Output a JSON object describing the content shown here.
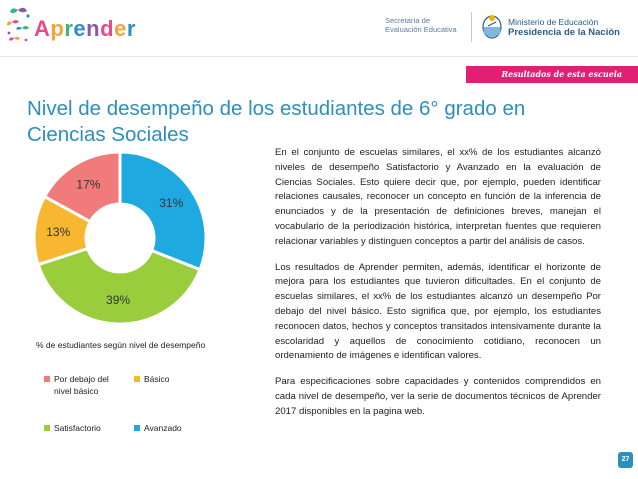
{
  "header": {
    "logo_text": "Aprender",
    "logo_letter_colors": [
      "#e94b8a",
      "#f2a43a",
      "#3eb27a",
      "#2f8ec9",
      "#8d58a8",
      "#e94b8a",
      "#f2a43a",
      "#2f8ec9"
    ],
    "secretaria_line1": "Secretaría de",
    "secretaria_line2": "Evaluación Educativa",
    "ministerio_line1": "Ministerio de Educación",
    "ministerio_line2": "Presidencia de la Nación"
  },
  "tab_label": "Resultados de esta escuela",
  "title": "Nivel de desempeño de los estudiantes de 6° grado en Ciencias Sociales",
  "paragraphs": [
    "En el conjunto de escuelas similares, el xx% de los estudiantes alcanzó niveles de desempeño Satisfactorio y Avanzado en la evaluación de Ciencias Sociales. Esto quiere decir que, por ejemplo, pueden identificar relaciones causales, reconocer un concepto en función de la inferencia de enunciados y de la presentación de definiciones breves, manejan el vocabulario de la periodización histórica, interpretan fuentes que requieren relacionar variables y distinguen conceptos a partir del análisis de casos.",
    "Los resultados de Aprender permiten, además, identificar el horizonte de mejora para los estudiantes que tuvieron dificultades. En el conjunto de escuelas similares, el xx% de los estudiantes alcanzó un desempeño Por debajo del nivel básico. Esto significa que, por ejemplo, los estudiantes reconocen datos, hechos y conceptos transitados intensivamente durante la escolaridad y aquellos de conocimiento cotidiano, reconocen un ordenamiento de imágenes e identifican valores.",
    "Para especificaciones sobre capacidades y contenidos comprendidos en cada nivel de desempeño, ver la serie de documentos técnicos de Aprender 2017 disponibles en la pagina web."
  ],
  "chart_data": {
    "type": "pie",
    "donut": true,
    "caption": "% de estudiantes según nivel de desempeño",
    "slices": [
      {
        "label": "Avanzado",
        "value": 31,
        "display": "31%",
        "color": "#1fa9e1"
      },
      {
        "label": "Satisfactorio",
        "value": 39,
        "display": "39%",
        "color": "#9acd3c"
      },
      {
        "label": "Básico",
        "value": 13,
        "display": "13%",
        "color": "#f7b731"
      },
      {
        "label": "Por debajo del nivel básico",
        "value": 17,
        "display": "17%",
        "color": "#f17a7a"
      }
    ],
    "legend": [
      {
        "label": "Por debajo del nivel básico",
        "color": "#f17a7a"
      },
      {
        "label": "Básico",
        "color": "#f7b731"
      },
      {
        "label": "Satisfactorio",
        "color": "#9acd3c"
      },
      {
        "label": "Avanzado",
        "color": "#1fa9e1"
      }
    ],
    "legend_placement": "bottom"
  },
  "page_number": "27",
  "colors": {
    "title": "#2c8fbf",
    "tab": "#e21f73",
    "ministry": "#2b5a8b"
  }
}
